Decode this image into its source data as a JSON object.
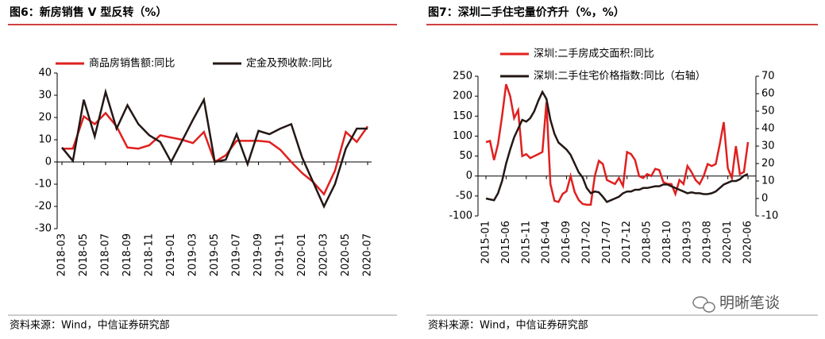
{
  "chart_data": [
    {
      "type": "line",
      "title": "图6：新房销售 V 型反转（%）",
      "source": "资料来源：Wind，中信证券研究部",
      "categories": [
        "2018-03",
        null,
        "2018-05",
        null,
        "2018-07",
        null,
        "2018-09",
        null,
        "2018-11",
        null,
        "2019-01",
        null,
        "2019-03",
        null,
        "2019-05",
        null,
        "2019-07",
        null,
        "2019-09",
        null,
        "2019-11",
        null,
        "2020-01",
        null,
        "2020-03",
        null,
        "2020-05",
        null,
        "2020-07"
      ],
      "series": [
        {
          "name": "商品房销售额:同比",
          "color": "#e0201f",
          "values": [
            6,
            6,
            20.5,
            17,
            22,
            16,
            6.5,
            6,
            7.5,
            12,
            11,
            10,
            8.5,
            13.5,
            0,
            3,
            9.5,
            9.5,
            9.5,
            9,
            5.5,
            0,
            -5,
            -9,
            -14.5,
            -4,
            13.5,
            9,
            16
          ]
        },
        {
          "name": "定金及预收款:同比",
          "color": "#231815",
          "values": [
            6.5,
            0.5,
            28,
            11.5,
            31.5,
            15,
            25.5,
            17,
            12,
            9,
            0,
            9.5,
            19,
            28,
            0,
            1,
            12.5,
            -1,
            14,
            12.5,
            15,
            17,
            2,
            -9,
            -20,
            -10,
            6,
            15,
            15
          ]
        }
      ],
      "ylim": [
        -30,
        40
      ],
      "yticks": [
        -30,
        -20,
        -10,
        0,
        10,
        20,
        30,
        40
      ],
      "grid": false,
      "legend": "top"
    },
    {
      "type": "line",
      "title": "图7：深圳二手住宅量价齐升（%，%）",
      "source": "资料来源：Wind，中信证券研究部",
      "categories": [
        "2015-01",
        null,
        null,
        null,
        null,
        "2015-06",
        null,
        null,
        null,
        null,
        "2015-11",
        null,
        null,
        null,
        null,
        "2016-04",
        null,
        null,
        null,
        null,
        "2016-09",
        null,
        null,
        null,
        null,
        "2017-02",
        null,
        null,
        null,
        null,
        "2017-07",
        null,
        null,
        null,
        null,
        "2017-12",
        null,
        null,
        null,
        null,
        "2018-05",
        null,
        null,
        null,
        null,
        "2018-10",
        null,
        null,
        null,
        null,
        "2019-03",
        null,
        null,
        null,
        null,
        "2019-08",
        null,
        null,
        null,
        null,
        "2020-01",
        null,
        null,
        null,
        null,
        "2020-06"
      ],
      "series": [
        {
          "name": "深圳:二手房成交面积:同比",
          "color": "#e0201f",
          "values": [
            85,
            88,
            40,
            80,
            150,
            230,
            200,
            145,
            165,
            50,
            55,
            45,
            50,
            55,
            60,
            185,
            -20,
            -62,
            -65,
            -45,
            -38,
            0,
            -40,
            -60,
            -70,
            -72,
            -72,
            0,
            38,
            30,
            -10,
            -15,
            -20,
            -5,
            -25,
            60,
            55,
            40,
            0,
            -5,
            5,
            0,
            18,
            15,
            -15,
            -20,
            -20,
            -45,
            -10,
            -20,
            25,
            10,
            -10,
            -20,
            0,
            30,
            25,
            30,
            80,
            135,
            20,
            -5,
            75,
            5,
            10,
            85
          ]
        },
        {
          "name": "深圳:二手住宅价格指数:同比（右轴）",
          "color": "#231815",
          "axis": "y2",
          "values": [
            0,
            -0.5,
            -1,
            3,
            10,
            20,
            28,
            35,
            40,
            45,
            44,
            46,
            50,
            56,
            61,
            57,
            45,
            37,
            32,
            30,
            28,
            25,
            20,
            15,
            12,
            6,
            3,
            4,
            3.5,
            1,
            -2,
            -1,
            0,
            1,
            3,
            4,
            4,
            5,
            5,
            6,
            6,
            6.5,
            7,
            7,
            8,
            8,
            7,
            6,
            5,
            4,
            3,
            3.5,
            3,
            3,
            2.5,
            2.5,
            3,
            4,
            6,
            8,
            9,
            10,
            10,
            11,
            13,
            14
          ]
        }
      ],
      "ylim": [
        -100,
        250
      ],
      "yticks": [
        -100,
        -50,
        0,
        50,
        100,
        150,
        200,
        250
      ],
      "y2lim": [
        -10,
        70
      ],
      "y2ticks": [
        -10,
        0,
        10,
        20,
        30,
        40,
        50,
        60,
        70
      ],
      "grid": false,
      "legend": "top"
    }
  ],
  "watermark": "明晰笔谈"
}
